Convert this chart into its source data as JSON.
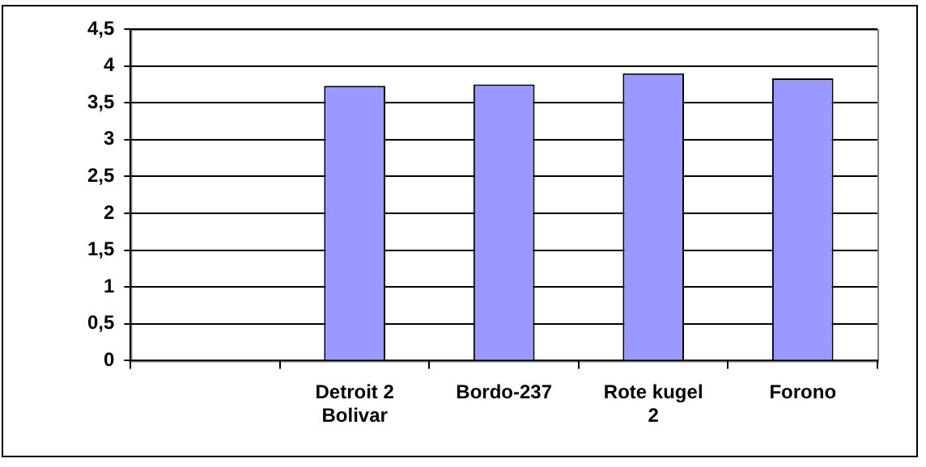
{
  "chart_data": {
    "type": "bar",
    "categories": [
      null,
      "Detroit 2 Bolivar",
      "Bordo-237",
      "Rote kugel 2",
      "Forono"
    ],
    "values": [
      null,
      3.73,
      3.75,
      3.9,
      3.83
    ],
    "color": "#9999ff",
    "ylim": [
      0,
      4.5
    ],
    "yticks": [
      {
        "value": 0,
        "label": "0"
      },
      {
        "value": 0.5,
        "label": "0,5"
      },
      {
        "value": 1,
        "label": "1"
      },
      {
        "value": 1.5,
        "label": "1,5"
      },
      {
        "value": 2,
        "label": "2"
      },
      {
        "value": 2.5,
        "label": "2,5"
      },
      {
        "value": 3,
        "label": "3"
      },
      {
        "value": 3.5,
        "label": "3,5"
      },
      {
        "value": 4,
        "label": "4"
      },
      {
        "value": 4.5,
        "label": "4,5"
      }
    ],
    "grid": "y",
    "legend": false
  }
}
